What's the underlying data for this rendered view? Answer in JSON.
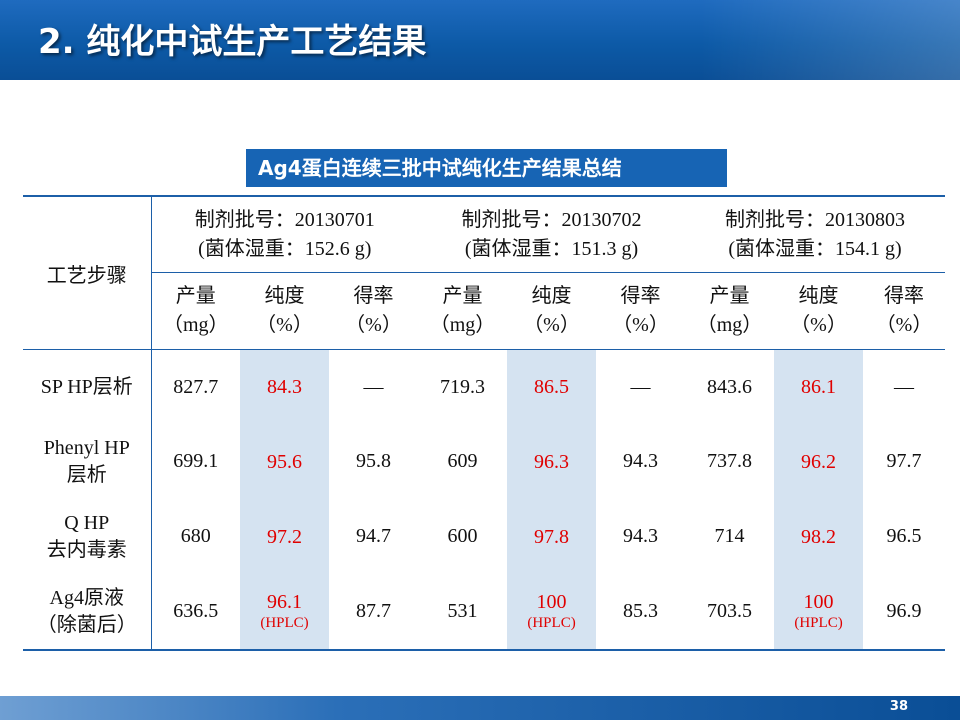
{
  "slide": {
    "title": "2. 纯化中试生产工艺结果",
    "caption": "Ag4蛋白连续三批中试纯化生产结果总结",
    "page_number": "38"
  },
  "colors": {
    "accent": "#1764b4",
    "highlight_fill": "#d5e3f1",
    "purity_text": "#e00000"
  },
  "table": {
    "step_header": "工艺步骤",
    "batches": [
      {
        "lot": "制剂批号：20130701",
        "weight": "(菌体湿重：152.6 g)"
      },
      {
        "lot": "制剂批号：20130702",
        "weight": "(菌体湿重：151.3 g)"
      },
      {
        "lot": "制剂批号：20130803",
        "weight": "(菌体湿重：154.1 g)"
      }
    ],
    "metric_headers": [
      {
        "name": "产量",
        "unit": "（mg）"
      },
      {
        "name": "纯度",
        "unit": "（%）"
      },
      {
        "name": "得率",
        "unit": "（%）"
      }
    ],
    "rows": [
      {
        "step_line1": "SP HP层析",
        "step_line2": "",
        "b1": {
          "yield": "827.7",
          "purity": "84.3",
          "purity_note": "",
          "recovery": "—"
        },
        "b2": {
          "yield": "719.3",
          "purity": "86.5",
          "purity_note": "",
          "recovery": "—"
        },
        "b3": {
          "yield": "843.6",
          "purity": "86.1",
          "purity_note": "",
          "recovery": "—"
        }
      },
      {
        "step_line1": "Phenyl HP",
        "step_line2": "层析",
        "b1": {
          "yield": "699.1",
          "purity": "95.6",
          "purity_note": "",
          "recovery": "95.8"
        },
        "b2": {
          "yield": "609",
          "purity": "96.3",
          "purity_note": "",
          "recovery": "94.3"
        },
        "b3": {
          "yield": "737.8",
          "purity": "96.2",
          "purity_note": "",
          "recovery": "97.7"
        }
      },
      {
        "step_line1": "Q HP",
        "step_line2": "去内毒素",
        "b1": {
          "yield": "680",
          "purity": "97.2",
          "purity_note": "",
          "recovery": "94.7"
        },
        "b2": {
          "yield": "600",
          "purity": "97.8",
          "purity_note": "",
          "recovery": "94.3"
        },
        "b3": {
          "yield": "714",
          "purity": "98.2",
          "purity_note": "",
          "recovery": "96.5"
        }
      },
      {
        "step_line1": "Ag4原液",
        "step_line2": "（除菌后）",
        "b1": {
          "yield": "636.5",
          "purity": "96.1",
          "purity_note": "(HPLC)",
          "recovery": "87.7"
        },
        "b2": {
          "yield": "531",
          "purity": "100",
          "purity_note": "(HPLC)",
          "recovery": "85.3"
        },
        "b3": {
          "yield": "703.5",
          "purity": "100",
          "purity_note": "(HPLC)",
          "recovery": "96.9"
        }
      }
    ]
  }
}
